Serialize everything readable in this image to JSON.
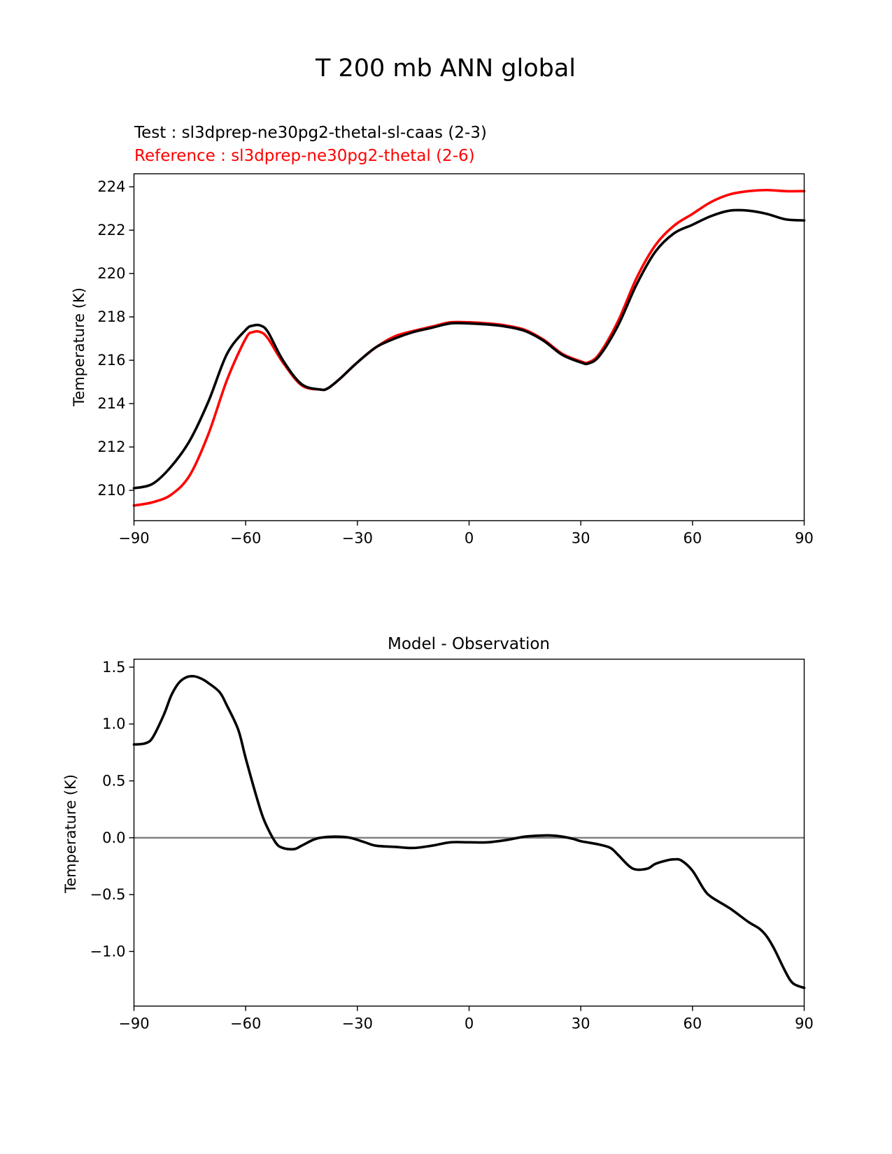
{
  "figure": {
    "title": "T 200 mb ANN global"
  },
  "chart_data": [
    {
      "type": "line",
      "test_label": "Test : sl3dprep-ne30pg2-thetal-sl-caas (2-3)",
      "reference_label": "Reference : sl3dprep-ne30pg2-thetal (2-6)",
      "xlabel": "",
      "ylabel": "Temperature (K)",
      "xlim": [
        -90,
        90
      ],
      "ylim": [
        208.6,
        224.6
      ],
      "xticks": [
        -90,
        -60,
        -30,
        0,
        30,
        60,
        90
      ],
      "xtick_labels": [
        "−90",
        "−60",
        "−30",
        "0",
        "30",
        "60",
        "90"
      ],
      "yticks": [
        210,
        212,
        214,
        216,
        218,
        220,
        222,
        224
      ],
      "yticks_labels": [
        "210",
        "212",
        "214",
        "216",
        "218",
        "220",
        "222",
        "224"
      ],
      "grid": false,
      "x": [
        -90,
        -85,
        -80,
        -75,
        -70,
        -65,
        -60,
        -58,
        -56,
        -54,
        -50,
        -45,
        -40,
        -38,
        -35,
        -30,
        -25,
        -20,
        -15,
        -10,
        -5,
        0,
        5,
        10,
        15,
        20,
        25,
        30,
        32,
        35,
        40,
        45,
        50,
        55,
        60,
        65,
        70,
        75,
        80,
        85,
        90
      ],
      "series": [
        {
          "name": "test",
          "color": "#000000",
          "values": [
            210.1,
            210.3,
            211.1,
            212.3,
            214.1,
            216.3,
            217.4,
            217.6,
            217.6,
            217.3,
            216.0,
            214.9,
            214.65,
            214.7,
            215.1,
            215.9,
            216.6,
            217.0,
            217.3,
            217.5,
            217.7,
            217.7,
            217.65,
            217.55,
            217.35,
            216.9,
            216.25,
            215.9,
            215.85,
            216.2,
            217.6,
            219.5,
            221.0,
            221.85,
            222.25,
            222.65,
            222.9,
            222.9,
            222.75,
            222.5,
            222.45
          ]
        },
        {
          "name": "reference",
          "color": "#ff0000",
          "values": [
            209.3,
            209.45,
            209.8,
            210.7,
            212.6,
            215.1,
            217.0,
            217.3,
            217.3,
            217.0,
            215.9,
            214.85,
            214.65,
            214.7,
            215.1,
            215.9,
            216.6,
            217.1,
            217.35,
            217.55,
            217.75,
            217.75,
            217.7,
            217.6,
            217.4,
            216.95,
            216.3,
            215.95,
            215.9,
            216.3,
            217.8,
            219.8,
            221.3,
            222.2,
            222.75,
            223.3,
            223.65,
            223.8,
            223.85,
            223.8,
            223.8
          ]
        }
      ]
    },
    {
      "type": "line",
      "title": "Model - Observation",
      "xlabel": "",
      "ylabel": "Temperature (K)",
      "xlim": [
        -90,
        90
      ],
      "ylim": [
        -1.48,
        1.57
      ],
      "xticks": [
        -90,
        -60,
        -30,
        0,
        30,
        60,
        90
      ],
      "xtick_labels": [
        "−90",
        "−60",
        "−30",
        "0",
        "30",
        "60",
        "90"
      ],
      "yticks": [
        -1.0,
        -0.5,
        0.0,
        0.5,
        1.0,
        1.5
      ],
      "yticks_labels": [
        "−1.0",
        "−0.5",
        "0.0",
        "0.5",
        "1.0",
        "1.5"
      ],
      "grid": false,
      "zero_line": {
        "value": 0,
        "color": "#808080"
      },
      "x": [
        -90,
        -87,
        -85,
        -82,
        -80,
        -78,
        -76,
        -74,
        -72,
        -70,
        -67,
        -65,
        -62,
        -60,
        -57,
        -55,
        -52,
        -50,
        -47,
        -45,
        -42,
        -40,
        -36,
        -32,
        -28,
        -25,
        -20,
        -15,
        -10,
        -5,
        0,
        5,
        10,
        15,
        20,
        22,
        25,
        28,
        30,
        35,
        38,
        40,
        43,
        45,
        48,
        50,
        53,
        55,
        57,
        60,
        63,
        65,
        70,
        75,
        78,
        80,
        82,
        85,
        87,
        90
      ],
      "series": [
        {
          "name": "",
          "color": "#000000",
          "values": [
            0.82,
            0.83,
            0.88,
            1.08,
            1.25,
            1.36,
            1.41,
            1.42,
            1.4,
            1.36,
            1.28,
            1.16,
            0.95,
            0.7,
            0.35,
            0.15,
            -0.04,
            -0.09,
            -0.1,
            -0.07,
            -0.02,
            0.0,
            0.01,
            0.0,
            -0.04,
            -0.07,
            -0.08,
            -0.09,
            -0.07,
            -0.04,
            -0.04,
            -0.04,
            -0.02,
            0.01,
            0.02,
            0.02,
            0.01,
            -0.01,
            -0.03,
            -0.06,
            -0.09,
            -0.15,
            -0.25,
            -0.28,
            -0.27,
            -0.23,
            -0.2,
            -0.19,
            -0.2,
            -0.29,
            -0.45,
            -0.52,
            -0.62,
            -0.74,
            -0.8,
            -0.87,
            -0.98,
            -1.18,
            -1.28,
            -1.32
          ]
        }
      ]
    }
  ]
}
